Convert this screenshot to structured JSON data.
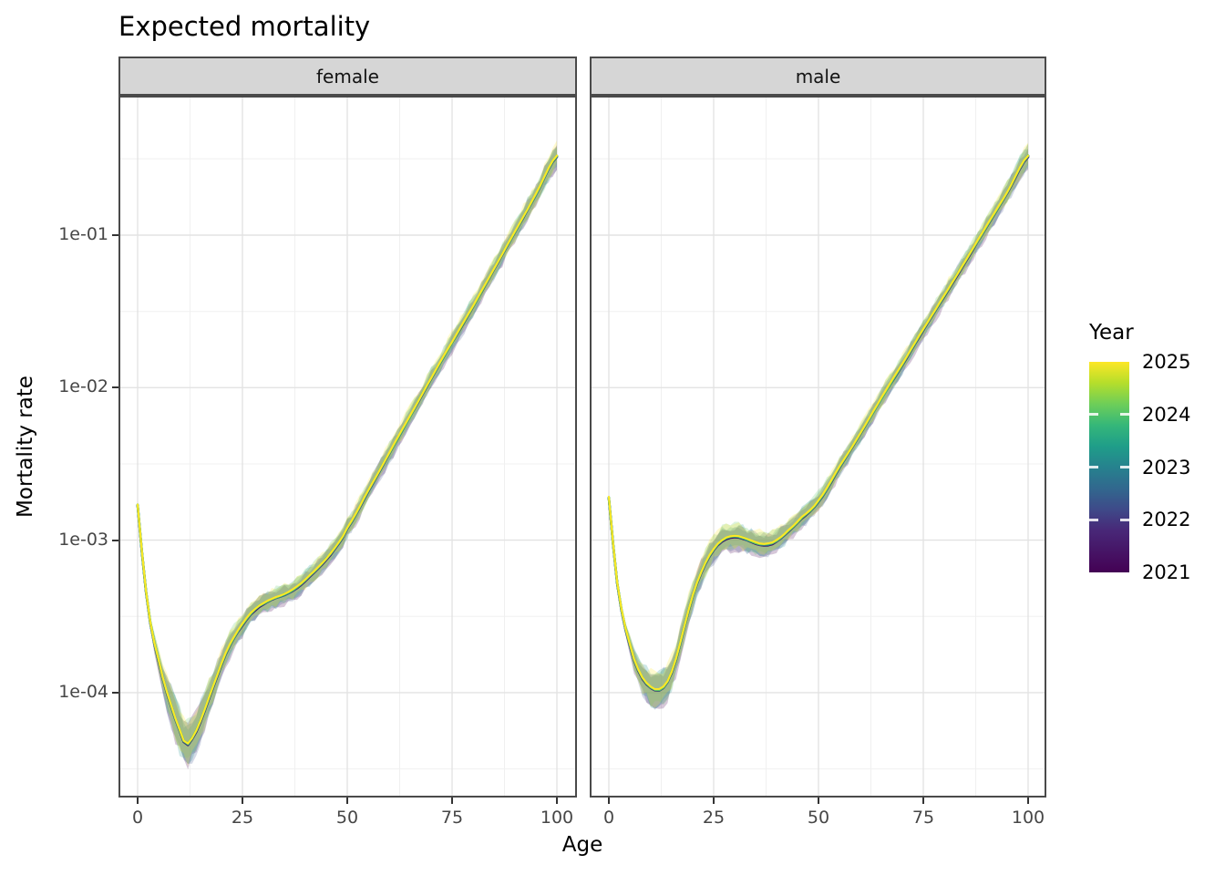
{
  "title": "Expected mortality",
  "axes": {
    "x": {
      "label": "Age",
      "tick_labels": [
        "0",
        "25",
        "50",
        "75",
        "100"
      ],
      "tick_ages": [
        0,
        25,
        50,
        75,
        100
      ]
    },
    "y": {
      "label": "Mortality rate",
      "tick_labels": [
        "1e-01",
        "1e-02",
        "1e-03",
        "1e-04"
      ],
      "tick_log10": [
        -1,
        -2,
        -3,
        -4
      ]
    }
  },
  "legend": {
    "title": "Year",
    "entries": [
      {
        "label": "2025",
        "year": 2025,
        "color": "#fde725"
      },
      {
        "label": "2024",
        "year": 2024,
        "color": "#5ec962"
      },
      {
        "label": "2023",
        "year": 2023,
        "color": "#21918c"
      },
      {
        "label": "2022",
        "year": 2022,
        "color": "#3b528b"
      },
      {
        "label": "2021",
        "year": 2021,
        "color": "#440154"
      }
    ]
  },
  "chart_data": {
    "type": "line",
    "title": "Expected mortality",
    "xlabel": "Age",
    "ylabel": "Mortality rate",
    "x_range": [
      0,
      100
    ],
    "y_scale": "log10",
    "y_tick_values": [
      0.1,
      0.01,
      0.001,
      0.0001
    ],
    "grid": "on",
    "legend_position": "right",
    "series_years": [
      2021,
      2022,
      2023,
      2024,
      2025
    ],
    "series_note": "Curves for years 2021-2025 overlap almost exactly; each is drawn with a translucent uncertainty ribbon whose overlap appears sage green. 2025 (yellow) is topmost.",
    "facets": [
      {
        "name": "female",
        "points": [
          [
            0,
            0.0017
          ],
          [
            1,
            0.00085
          ],
          [
            2,
            0.00046
          ],
          [
            3,
            0.00029
          ],
          [
            4,
            0.00021
          ],
          [
            6,
            0.000125
          ],
          [
            8,
            8.2e-05
          ],
          [
            10,
            5.7e-05
          ],
          [
            11.5,
            4.6e-05
          ],
          [
            13,
            5e-05
          ],
          [
            15,
            6.5e-05
          ],
          [
            17,
            9.2e-05
          ],
          [
            19,
            0.00013
          ],
          [
            21,
            0.00018
          ],
          [
            23,
            0.00023
          ],
          [
            25,
            0.00028
          ],
          [
            27,
            0.00033
          ],
          [
            29,
            0.00037
          ],
          [
            32,
            0.00041
          ],
          [
            35,
            0.00044
          ],
          [
            38,
            0.00049
          ],
          [
            41,
            0.00058
          ],
          [
            44,
            0.0007
          ],
          [
            47,
            0.00088
          ],
          [
            50,
            0.0012
          ],
          [
            55,
            0.0021
          ],
          [
            60,
            0.0037
          ],
          [
            65,
            0.0065
          ],
          [
            70,
            0.0115
          ],
          [
            75,
            0.0198
          ],
          [
            80,
            0.034
          ],
          [
            85,
            0.06
          ],
          [
            90,
            0.105
          ],
          [
            95,
            0.185
          ],
          [
            100,
            0.33
          ]
        ]
      },
      {
        "name": "male",
        "points": [
          [
            0,
            0.0019
          ],
          [
            1,
            0.00095
          ],
          [
            2,
            0.00052
          ],
          [
            3,
            0.00035
          ],
          [
            4,
            0.00026
          ],
          [
            6,
            0.000165
          ],
          [
            8,
            0.000125
          ],
          [
            10,
            0.000108
          ],
          [
            12,
            0.000104
          ],
          [
            14,
            0.000118
          ],
          [
            16,
            0.000165
          ],
          [
            18,
            0.00027
          ],
          [
            20,
            0.00043
          ],
          [
            22,
            0.00061
          ],
          [
            24,
            0.00079
          ],
          [
            26,
            0.00094
          ],
          [
            28,
            0.00103
          ],
          [
            30,
            0.00106
          ],
          [
            32,
            0.00103
          ],
          [
            34,
            0.00098
          ],
          [
            36,
            0.00094
          ],
          [
            38,
            0.00094
          ],
          [
            40,
            0.00099
          ],
          [
            43,
            0.00116
          ],
          [
            46,
            0.0014
          ],
          [
            50,
            0.0018
          ],
          [
            55,
            0.003
          ],
          [
            60,
            0.005
          ],
          [
            65,
            0.0085
          ],
          [
            70,
            0.0142
          ],
          [
            75,
            0.024
          ],
          [
            80,
            0.04
          ],
          [
            85,
            0.067
          ],
          [
            90,
            0.113
          ],
          [
            95,
            0.19
          ],
          [
            100,
            0.33
          ]
        ]
      }
    ]
  }
}
